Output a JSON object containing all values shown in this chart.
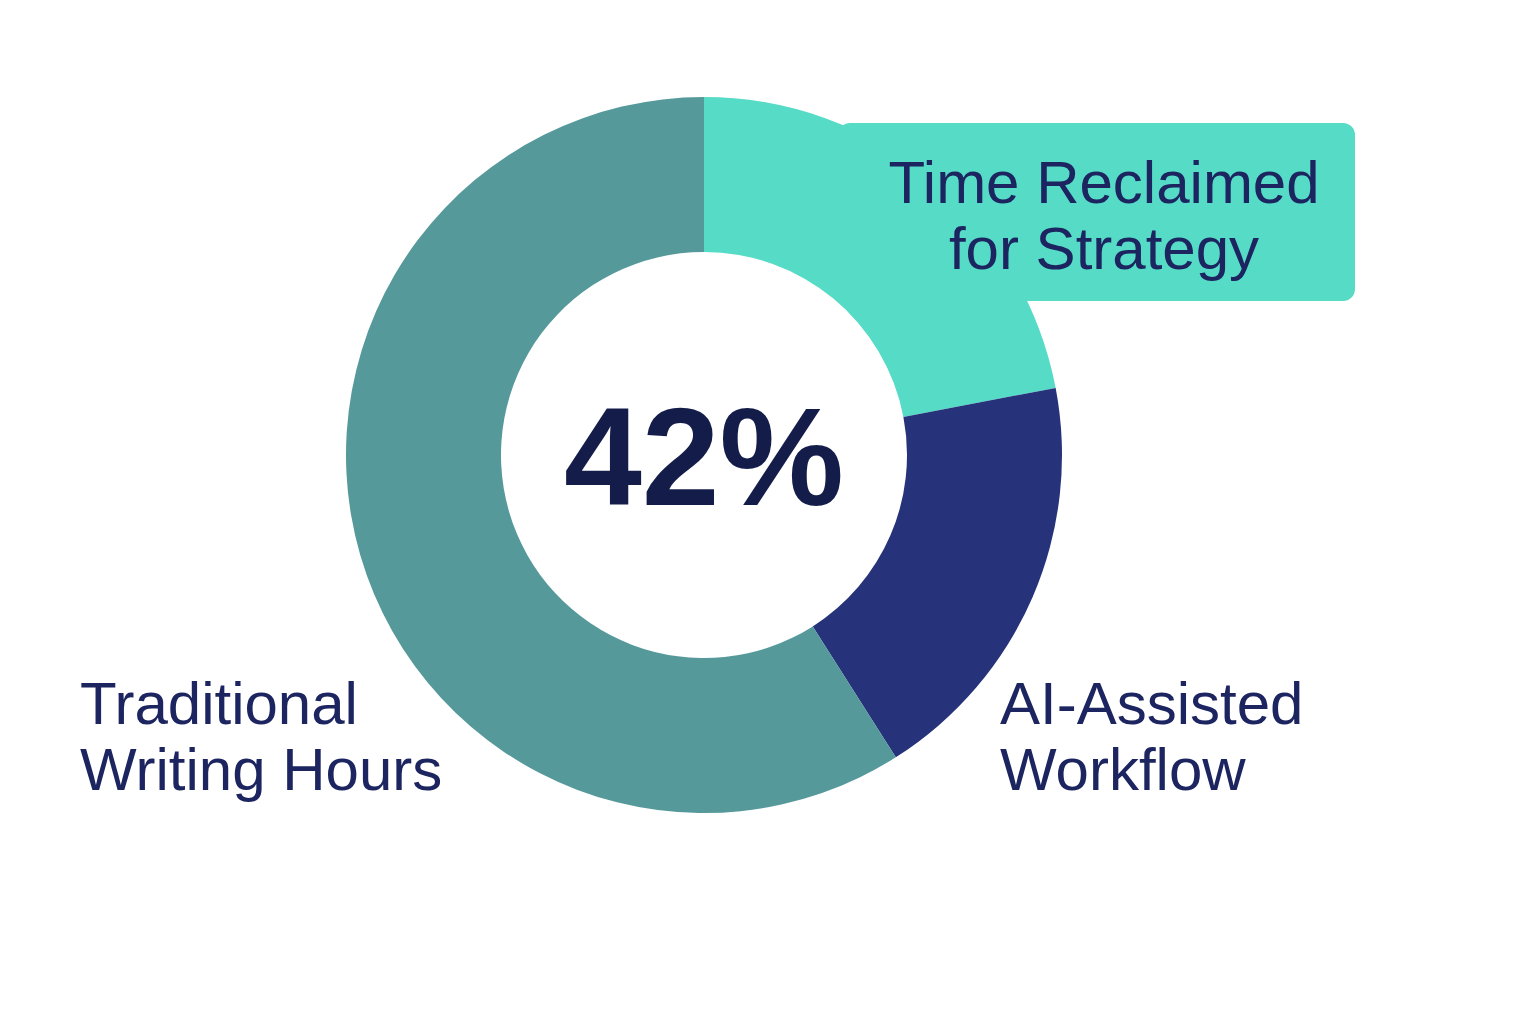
{
  "chart_data": {
    "type": "donut",
    "categories": [
      "Time Reclaimed for Strategy",
      "AI-Assisted Workflow",
      "Traditional Writing Hours"
    ],
    "values": [
      22,
      19,
      59
    ],
    "colors": [
      "#55dbc6",
      "#26337a",
      "#55999b"
    ],
    "annotations": [
      "42%"
    ]
  }
}
